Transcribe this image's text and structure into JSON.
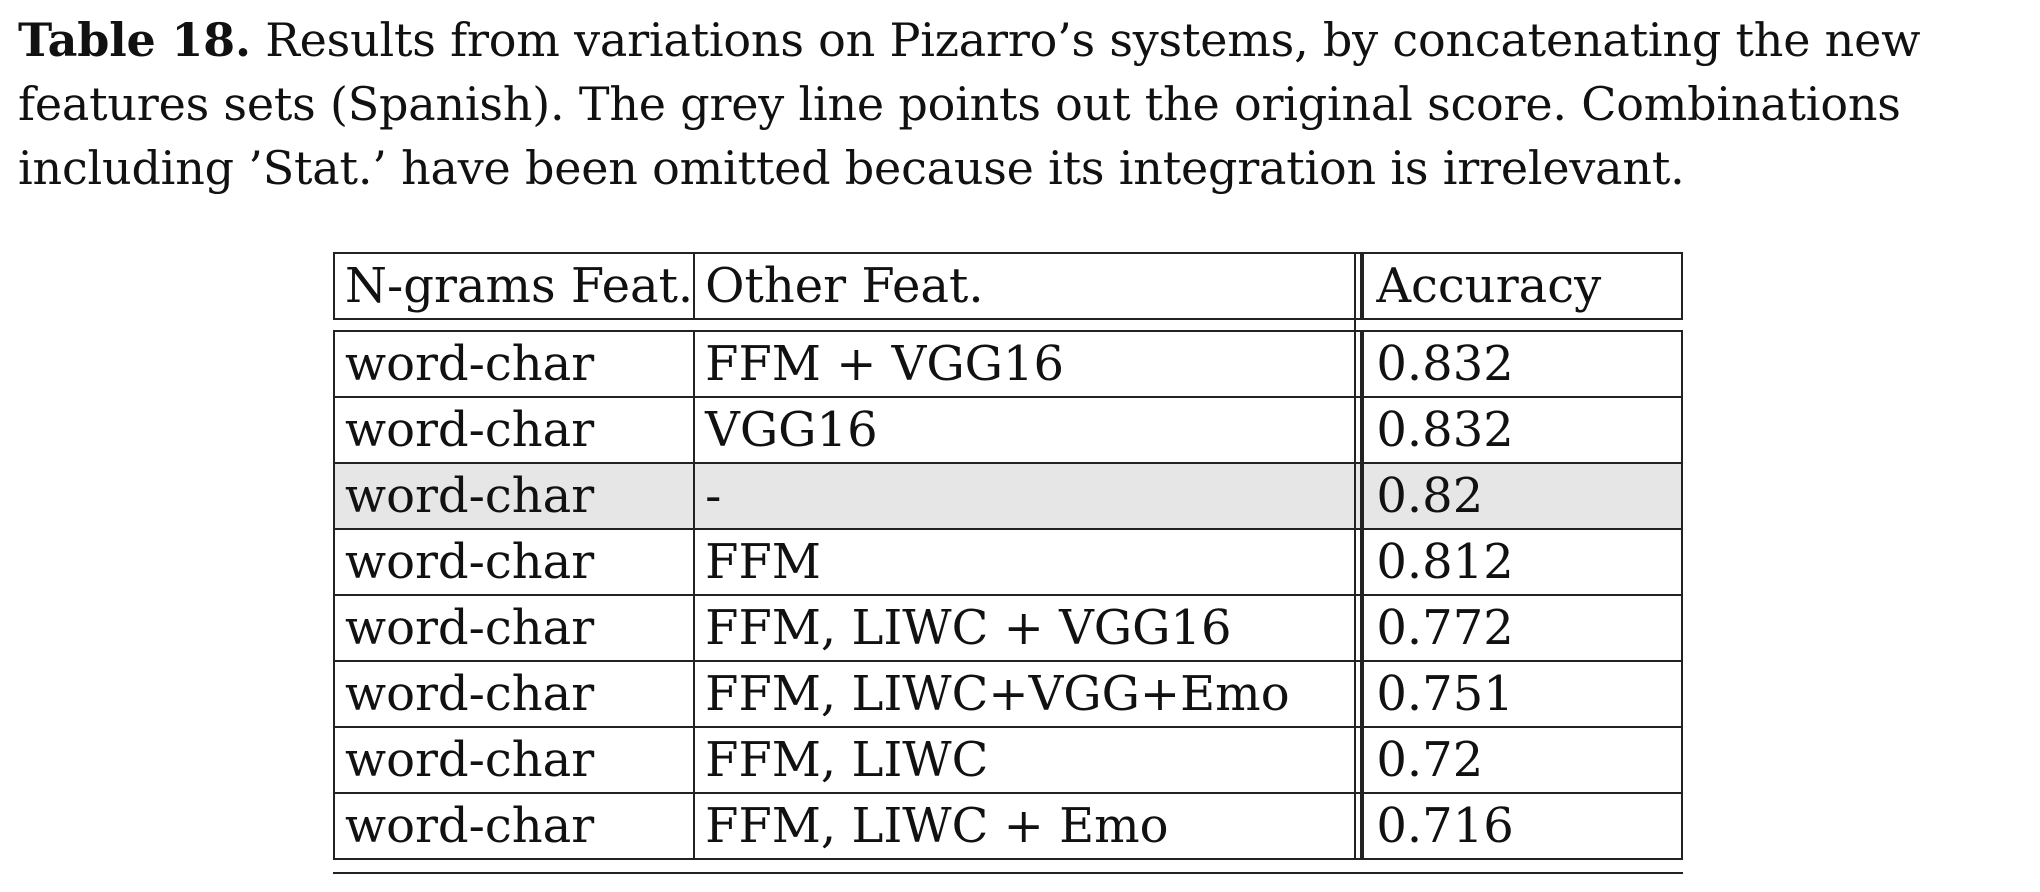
{
  "caption": {
    "label": "Table 18.",
    "text": " Results from variations on Pizarro’s systems, by concatenating the new features sets (Spanish). The grey line points out the original score. Combinations including ’Stat.’ have been omitted because its integration is irrelevant."
  },
  "table": {
    "headers": [
      "N-grams Feat.",
      "Other Feat.",
      "Accuracy"
    ],
    "rows": [
      {
        "ngrams": "word-char",
        "other": "FFM + VGG16",
        "accuracy": "0.832",
        "highlight": false
      },
      {
        "ngrams": "word-char",
        "other": "VGG16",
        "accuracy": "0.832",
        "highlight": false
      },
      {
        "ngrams": "word-char",
        "other": "-",
        "accuracy": "0.82",
        "highlight": true
      },
      {
        "ngrams": "word-char",
        "other": "FFM",
        "accuracy": "0.812",
        "highlight": false
      },
      {
        "ngrams": "word-char",
        "other": "FFM, LIWC + VGG16",
        "accuracy": "0.772",
        "highlight": false
      },
      {
        "ngrams": "word-char",
        "other": "FFM, LIWC+VGG+Emo",
        "accuracy": "0.751",
        "highlight": false
      },
      {
        "ngrams": "word-char",
        "other": "FFM, LIWC",
        "accuracy": "0.72",
        "highlight": false
      },
      {
        "ngrams": "word-char",
        "other": "FFM, LIWC + Emo",
        "accuracy": "0.716",
        "highlight": false
      }
    ],
    "highlight_color": "#e6e6e6"
  }
}
